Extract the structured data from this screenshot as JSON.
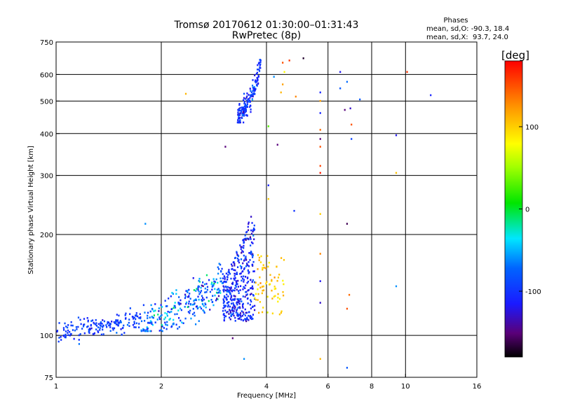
{
  "chart_data": {
    "type": "scatter",
    "title": "Tromsø 20170612 01:30:00–01:31:43",
    "subtitle": "RwPretec (8p)",
    "xlabel": "Frequency [MHz]",
    "ylabel": "Stationary phase Virtual Height [km]",
    "x_scale": "log",
    "y_scale": "log",
    "xlim": [
      1,
      16
    ],
    "ylim": [
      75,
      750
    ],
    "x_ticks": [
      1,
      2,
      4,
      6,
      8,
      10,
      16
    ],
    "x_tick_labels": [
      "1",
      "2",
      "4",
      "6",
      "8",
      "10",
      "16"
    ],
    "x_grid_lines": [
      2,
      4,
      6,
      8,
      10
    ],
    "y_ticks": [
      75,
      100,
      200,
      300,
      400,
      500,
      600,
      750
    ],
    "y_tick_labels": [
      "75",
      "100",
      "200",
      "300",
      "400",
      "500",
      "600",
      "750"
    ],
    "y_grid_lines": [
      100,
      200,
      300,
      400,
      500,
      600
    ],
    "grid": true,
    "legend": {
      "title": "Phases",
      "line_o": "mean, sd,O: -90.3, 18.4",
      "line_x": "mean, sd,X:  93.7, 24.0"
    },
    "colorbar": {
      "label": "[deg]",
      "range": [
        -180,
        180
      ],
      "ticks": [
        100,
        0,
        -100
      ],
      "tick_labels": [
        "100",
        "0",
        "-100"
      ]
    },
    "clusters": [
      {
        "name": "low-frequency trace",
        "x_range": [
          1.0,
          1.75
        ],
        "y_range": [
          94,
          118
        ],
        "phase_mean": -95,
        "phase_sd": 12,
        "count": 170
      },
      {
        "name": "F-region rise",
        "x_range": [
          1.75,
          3.0
        ],
        "y_range": [
          105,
          165
        ],
        "phase_mean": -70,
        "phase_sd": 30,
        "count": 260
      },
      {
        "name": "F-region cusp",
        "x_range": [
          3.0,
          3.7
        ],
        "y_range": [
          110,
          240
        ],
        "phase_mean": -105,
        "phase_sd": 18,
        "count": 380
      },
      {
        "name": "yellow echoes near 4 MHz",
        "x_range": [
          3.7,
          4.5
        ],
        "y_range": [
          115,
          175
        ],
        "phase_mean": 100,
        "phase_sd": 12,
        "count": 70
      },
      {
        "name": "second hop",
        "x_range": [
          3.3,
          3.85
        ],
        "y_range": [
          440,
          650
        ],
        "phase_mean": -100,
        "phase_sd": 16,
        "count": 170
      }
    ],
    "scattered_points": [
      {
        "x": 2.35,
        "y": 525,
        "phase": 110
      },
      {
        "x": 3.05,
        "y": 365,
        "phase": -150
      },
      {
        "x": 4.45,
        "y": 650,
        "phase": 150
      },
      {
        "x": 4.65,
        "y": 660,
        "phase": 160
      },
      {
        "x": 5.1,
        "y": 670,
        "phase": -170
      },
      {
        "x": 4.5,
        "y": 610,
        "phase": 80
      },
      {
        "x": 4.45,
        "y": 560,
        "phase": 120
      },
      {
        "x": 4.4,
        "y": 530,
        "phase": 110
      },
      {
        "x": 4.85,
        "y": 515,
        "phase": 130
      },
      {
        "x": 4.2,
        "y": 590,
        "phase": -60
      },
      {
        "x": 4.3,
        "y": 370,
        "phase": -150
      },
      {
        "x": 4.05,
        "y": 420,
        "phase": 30
      },
      {
        "x": 4.05,
        "y": 280,
        "phase": -110
      },
      {
        "x": 4.05,
        "y": 255,
        "phase": 100
      },
      {
        "x": 4.8,
        "y": 235,
        "phase": -100
      },
      {
        "x": 5.7,
        "y": 530,
        "phase": -110
      },
      {
        "x": 5.7,
        "y": 500,
        "phase": 120
      },
      {
        "x": 5.7,
        "y": 460,
        "phase": -110
      },
      {
        "x": 5.7,
        "y": 410,
        "phase": 140
      },
      {
        "x": 5.7,
        "y": 385,
        "phase": -150
      },
      {
        "x": 5.7,
        "y": 365,
        "phase": 150
      },
      {
        "x": 5.7,
        "y": 320,
        "phase": 155
      },
      {
        "x": 5.7,
        "y": 305,
        "phase": 170
      },
      {
        "x": 5.7,
        "y": 230,
        "phase": 100
      },
      {
        "x": 5.7,
        "y": 175,
        "phase": 130
      },
      {
        "x": 5.7,
        "y": 145,
        "phase": -120
      },
      {
        "x": 5.7,
        "y": 125,
        "phase": -130
      },
      {
        "x": 5.7,
        "y": 85,
        "phase": 110
      },
      {
        "x": 6.5,
        "y": 610,
        "phase": -120
      },
      {
        "x": 6.8,
        "y": 570,
        "phase": -70
      },
      {
        "x": 6.5,
        "y": 545,
        "phase": -80
      },
      {
        "x": 7.4,
        "y": 505,
        "phase": -80
      },
      {
        "x": 6.7,
        "y": 470,
        "phase": -150
      },
      {
        "x": 6.95,
        "y": 475,
        "phase": -130
      },
      {
        "x": 7.0,
        "y": 425,
        "phase": 150
      },
      {
        "x": 7.0,
        "y": 385,
        "phase": -90
      },
      {
        "x": 6.8,
        "y": 215,
        "phase": -160
      },
      {
        "x": 6.9,
        "y": 132,
        "phase": 140
      },
      {
        "x": 6.8,
        "y": 120,
        "phase": 150
      },
      {
        "x": 6.8,
        "y": 80,
        "phase": -80
      },
      {
        "x": 9.4,
        "y": 395,
        "phase": -120
      },
      {
        "x": 9.4,
        "y": 305,
        "phase": 105
      },
      {
        "x": 9.4,
        "y": 140,
        "phase": -60
      },
      {
        "x": 10.1,
        "y": 610,
        "phase": 160
      },
      {
        "x": 11.8,
        "y": 520,
        "phase": -110
      },
      {
        "x": 1.8,
        "y": 215,
        "phase": -60
      },
      {
        "x": 3.2,
        "y": 98,
        "phase": -150
      },
      {
        "x": 3.45,
        "y": 85,
        "phase": -60
      }
    ]
  }
}
